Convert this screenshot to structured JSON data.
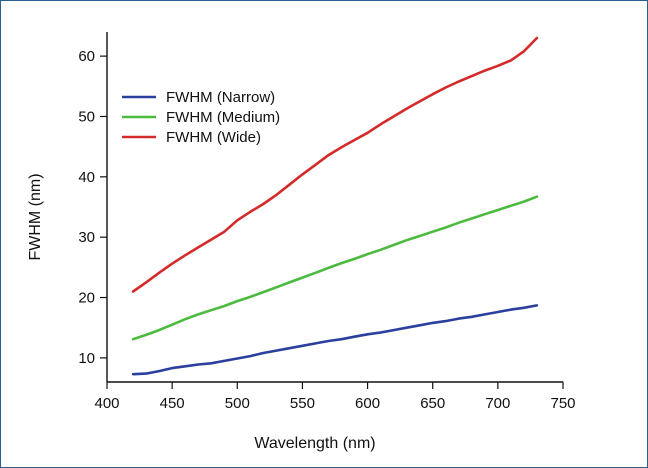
{
  "chart_data": {
    "type": "line",
    "title": "",
    "xlabel": "Wavelength (nm)",
    "ylabel": "FWHM (nm)",
    "xlim": [
      400,
      750
    ],
    "ylim": [
      6,
      64
    ],
    "x_ticks": [
      400,
      450,
      500,
      550,
      600,
      650,
      700,
      750
    ],
    "y_ticks": [
      10,
      20,
      30,
      40,
      50,
      60
    ],
    "grid": false,
    "legend_position": "top-left",
    "series": [
      {
        "name": "FWHM (Narrow)",
        "color": "#2b3f9e",
        "x": [
          420,
          430,
          440,
          450,
          460,
          470,
          480,
          490,
          500,
          510,
          520,
          530,
          540,
          550,
          560,
          570,
          580,
          590,
          600,
          610,
          620,
          630,
          640,
          650,
          660,
          670,
          680,
          690,
          700,
          710,
          720,
          730
        ],
        "y": [
          7.3,
          7.4,
          7.8,
          8.3,
          8.6,
          8.9,
          9.1,
          9.5,
          9.9,
          10.3,
          10.8,
          11.2,
          11.6,
          12.0,
          12.4,
          12.8,
          13.1,
          13.5,
          13.9,
          14.2,
          14.6,
          15.0,
          15.4,
          15.8,
          16.1,
          16.5,
          16.8,
          17.2,
          17.6,
          18.0,
          18.3,
          18.7
        ]
      },
      {
        "name": "FWHM (Medium)",
        "color": "#4cba3e",
        "x": [
          420,
          430,
          440,
          450,
          460,
          470,
          480,
          490,
          500,
          510,
          520,
          530,
          540,
          550,
          560,
          570,
          580,
          590,
          600,
          610,
          620,
          630,
          640,
          650,
          660,
          670,
          680,
          690,
          700,
          710,
          720,
          730
        ],
        "y": [
          13.1,
          13.8,
          14.6,
          15.5,
          16.4,
          17.2,
          17.9,
          18.6,
          19.4,
          20.1,
          20.9,
          21.7,
          22.5,
          23.3,
          24.1,
          24.9,
          25.7,
          26.4,
          27.2,
          27.9,
          28.7,
          29.5,
          30.2,
          30.9,
          31.6,
          32.4,
          33.1,
          33.8,
          34.5,
          35.2,
          35.9,
          36.7
        ]
      },
      {
        "name": "FWHM (Wide)",
        "color": "#d42a2a",
        "x": [
          420,
          430,
          440,
          450,
          460,
          470,
          480,
          490,
          500,
          510,
          520,
          530,
          540,
          550,
          560,
          570,
          580,
          590,
          600,
          610,
          620,
          630,
          640,
          650,
          660,
          670,
          680,
          690,
          700,
          710,
          720,
          730
        ],
        "y": [
          21.0,
          22.5,
          24.1,
          25.6,
          27.0,
          28.3,
          29.6,
          30.9,
          32.8,
          34.2,
          35.5,
          37.0,
          38.7,
          40.4,
          42.0,
          43.6,
          44.9,
          46.1,
          47.3,
          48.7,
          50.0,
          51.3,
          52.5,
          53.7,
          54.8,
          55.8,
          56.7,
          57.6,
          58.4,
          59.3,
          60.8,
          63.0
        ]
      }
    ]
  }
}
